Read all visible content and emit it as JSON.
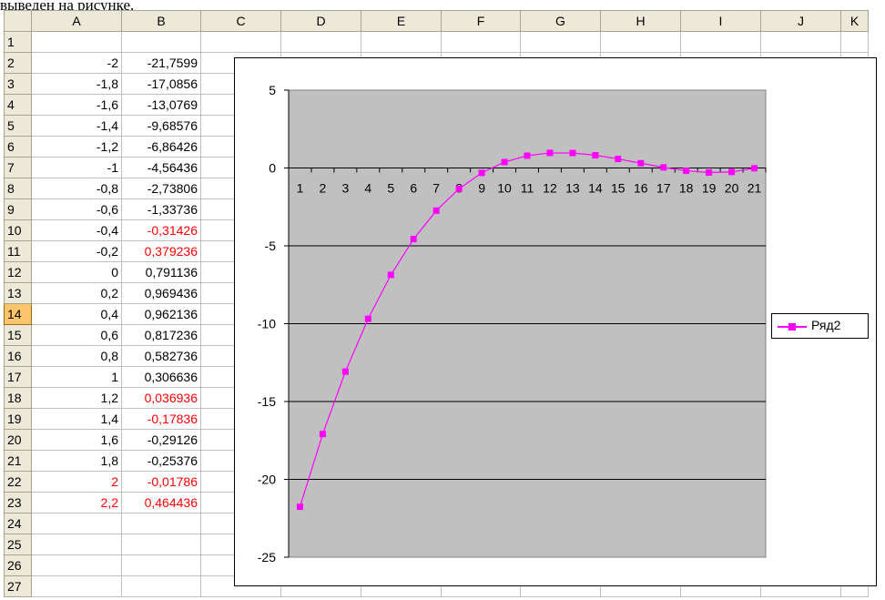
{
  "caption": "выведен на рисунке.",
  "columns": [
    "A",
    "B",
    "C",
    "D",
    "E",
    "F",
    "G",
    "H",
    "I",
    "J",
    "K"
  ],
  "column_widths": [],
  "selected_row": 14,
  "rows": [
    {
      "n": "1",
      "a": "",
      "b": "",
      "a_red": false,
      "b_red": false
    },
    {
      "n": "2",
      "a": "-2",
      "b": "-21,7599",
      "a_red": false,
      "b_red": false
    },
    {
      "n": "3",
      "a": "-1,8",
      "b": "-17,0856",
      "a_red": false,
      "b_red": false
    },
    {
      "n": "4",
      "a": "-1,6",
      "b": "-13,0769",
      "a_red": false,
      "b_red": false
    },
    {
      "n": "5",
      "a": "-1,4",
      "b": "-9,68576",
      "a_red": false,
      "b_red": false
    },
    {
      "n": "6",
      "a": "-1,2",
      "b": "-6,86426",
      "a_red": false,
      "b_red": false
    },
    {
      "n": "7",
      "a": "-1",
      "b": "-4,56436",
      "a_red": false,
      "b_red": false
    },
    {
      "n": "8",
      "a": "-0,8",
      "b": "-2,73806",
      "a_red": false,
      "b_red": false
    },
    {
      "n": "9",
      "a": "-0,6",
      "b": "-1,33736",
      "a_red": false,
      "b_red": false
    },
    {
      "n": "10",
      "a": "-0,4",
      "b": "-0,31426",
      "a_red": false,
      "b_red": true
    },
    {
      "n": "11",
      "a": "-0,2",
      "b": "0,379236",
      "a_red": false,
      "b_red": true
    },
    {
      "n": "12",
      "a": "0",
      "b": "0,791136",
      "a_red": false,
      "b_red": false
    },
    {
      "n": "13",
      "a": "0,2",
      "b": "0,969436",
      "a_red": false,
      "b_red": false
    },
    {
      "n": "14",
      "a": "0,4",
      "b": "0,962136",
      "a_red": false,
      "b_red": false
    },
    {
      "n": "15",
      "a": "0,6",
      "b": "0,817236",
      "a_red": false,
      "b_red": false
    },
    {
      "n": "16",
      "a": "0,8",
      "b": "0,582736",
      "a_red": false,
      "b_red": false
    },
    {
      "n": "17",
      "a": "1",
      "b": "0,306636",
      "a_red": false,
      "b_red": false
    },
    {
      "n": "18",
      "a": "1,2",
      "b": "0,036936",
      "a_red": false,
      "b_red": true
    },
    {
      "n": "19",
      "a": "1,4",
      "b": "-0,17836",
      "a_red": false,
      "b_red": true
    },
    {
      "n": "20",
      "a": "1,6",
      "b": "-0,29126",
      "a_red": false,
      "b_red": false
    },
    {
      "n": "21",
      "a": "1,8",
      "b": "-0,25376",
      "a_red": false,
      "b_red": false
    },
    {
      "n": "22",
      "a": "2",
      "b": "-0,01786",
      "a_red": true,
      "b_red": true
    },
    {
      "n": "23",
      "a": "2,2",
      "b": "0,464436",
      "a_red": true,
      "b_red": true
    },
    {
      "n": "24",
      "a": "",
      "b": "",
      "a_red": false,
      "b_red": false
    },
    {
      "n": "25",
      "a": "",
      "b": "",
      "a_red": false,
      "b_red": false
    },
    {
      "n": "26",
      "a": "",
      "b": "",
      "a_red": false,
      "b_red": false
    },
    {
      "n": "27",
      "a": "",
      "b": "",
      "a_red": false,
      "b_red": false
    }
  ],
  "chart_data": {
    "type": "line",
    "categories": [
      "1",
      "2",
      "3",
      "4",
      "5",
      "6",
      "7",
      "8",
      "9",
      "10",
      "11",
      "12",
      "13",
      "14",
      "15",
      "16",
      "17",
      "18",
      "19",
      "20",
      "21"
    ],
    "series": [
      {
        "name": "Ряд2",
        "color": "#ff00ff",
        "values": [
          -21.7599,
          -17.0856,
          -13.0769,
          -9.68576,
          -6.86426,
          -4.56436,
          -2.73806,
          -1.33736,
          -0.31426,
          0.379236,
          0.791136,
          0.969436,
          0.962136,
          0.817236,
          0.582736,
          0.306636,
          0.036936,
          -0.17836,
          -0.29126,
          -0.25376,
          -0.01786
        ]
      }
    ],
    "ylim": [
      -25,
      5
    ],
    "yticks": [
      "5",
      "0",
      "-5",
      "-10",
      "-15",
      "-20",
      "-25"
    ],
    "plot_background": "#c0c0c0",
    "gridlines": true,
    "legend_position": "right"
  }
}
